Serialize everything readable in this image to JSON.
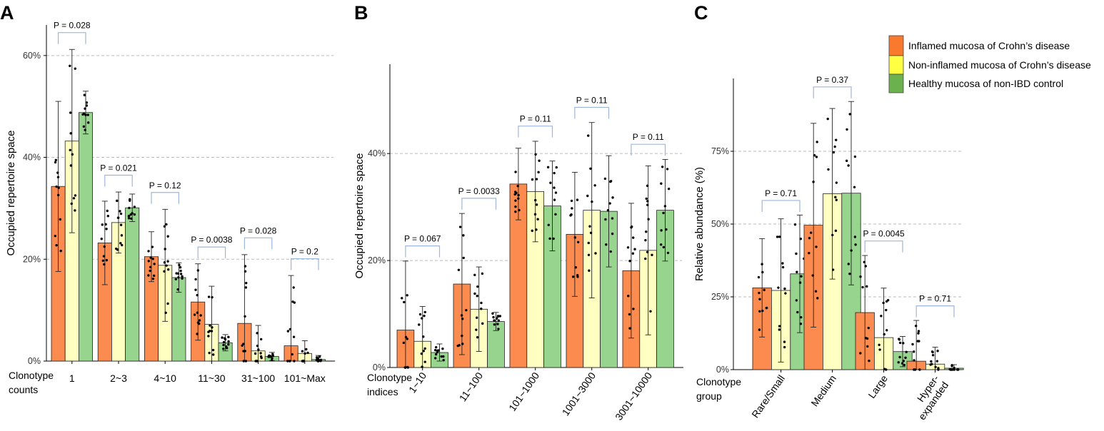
{
  "colors": {
    "series": [
      "#FB8B4E",
      "#FFFFC2",
      "#97D58E"
    ],
    "legend_swatches": [
      "#F9792F",
      "#FFFF44",
      "#6BB24F"
    ],
    "bracket": "#9DB6DC",
    "grid": "#BBBBBB",
    "point": "#000000"
  },
  "legend": {
    "items": [
      "Inflamed mucosa of Crohn’s disease",
      "Non-inflamed mucosa of Crohn’s disease",
      "Healthy mucosa of non-IBD control"
    ]
  },
  "chart_data": [
    {
      "panel": "A",
      "type": "bar",
      "ylabel": "Occupied repertoire space",
      "xlabel_lines": [
        "Clonotype",
        "counts"
      ],
      "categories": [
        "1",
        "2~3",
        "4~10",
        "11~30",
        "31~100",
        "101~Max"
      ],
      "yticks": [
        "0%",
        "20%",
        "40%",
        "60%"
      ],
      "ytick_values": [
        0,
        20,
        40,
        60
      ],
      "ylim": [
        0,
        66
      ],
      "grid": true,
      "series": [
        {
          "name": "Inflamed mucosa of Crohn’s disease",
          "values": [
            34.3,
            23.2,
            20.5,
            11.6,
            7.4,
            3.0
          ],
          "sd": [
            16.7,
            8.2,
            4.9,
            7.5,
            13.5,
            13.8
          ]
        },
        {
          "name": "Non-inflamed mucosa of Crohn’s disease",
          "values": [
            43.2,
            27.2,
            18.8,
            7.2,
            2.0,
            1.5
          ],
          "sd": [
            18.0,
            6.0,
            11.0,
            7.5,
            5.0,
            2.5
          ]
        },
        {
          "name": "Healthy mucosa of non-IBD control",
          "values": [
            48.8,
            30.1,
            16.4,
            3.6,
            0.9,
            0.3
          ],
          "sd": [
            4.2,
            2.7,
            2.9,
            1.6,
            0.8,
            0.8
          ]
        }
      ],
      "pvalues": [
        {
          "category": "1",
          "label": "P = 0.028"
        },
        {
          "category": "2~3",
          "label": "P = 0.021"
        },
        {
          "category": "4~10",
          "label": "P = 0.12"
        },
        {
          "category": "11~30",
          "label": "P = 0.0038"
        },
        {
          "category": "31~100",
          "label": "P = 0.028"
        },
        {
          "category": "101~Max",
          "label": "P = 0.2"
        }
      ]
    },
    {
      "panel": "B",
      "type": "bar",
      "ylabel": "Occupied repertoire space",
      "xlabel_lines": [
        "Clonotype",
        "indices"
      ],
      "categories": [
        "1~10",
        "11~100",
        "101~1000",
        "1001~3000",
        "3001~10000"
      ],
      "yticks": [
        "0%",
        "20%",
        "40%"
      ],
      "ytick_values": [
        0,
        20,
        40
      ],
      "ylim": [
        0,
        56.7
      ],
      "grid": true,
      "series": [
        {
          "name": "Inflamed mucosa of Crohn’s disease",
          "values": [
            7.0,
            15.6,
            34.3,
            24.9,
            18.1
          ],
          "sd": [
            12.9,
            13.2,
            6.7,
            11.6,
            12.6
          ]
        },
        {
          "name": "Non-inflamed mucosa of Crohn’s disease",
          "values": [
            4.9,
            10.9,
            32.9,
            29.4,
            21.9
          ],
          "sd": [
            6.5,
            7.9,
            9.4,
            16.4,
            15.8
          ]
        },
        {
          "name": "Healthy mucosa of non-IBD control",
          "values": [
            2.8,
            8.6,
            30.2,
            29.2,
            29.4
          ],
          "sd": [
            1.6,
            1.7,
            8.4,
            10.4,
            9.5
          ]
        }
      ],
      "pvalues": [
        {
          "category": "1~10",
          "label": "P = 0.067"
        },
        {
          "category": "11~100",
          "label": "P = 0.0033"
        },
        {
          "category": "101~1000",
          "label": "P = 0.11"
        },
        {
          "category": "1001~3000",
          "label": "P = 0.11"
        },
        {
          "category": "3001~10000",
          "label": "P = 0.11"
        }
      ]
    },
    {
      "panel": "C",
      "type": "bar",
      "ylabel": "Relative abundance (%)",
      "xlabel_lines": [
        "Clonotype",
        "group"
      ],
      "categories": [
        "Rare/Small",
        "Medium",
        "Large",
        "Hyper-\nexpanded"
      ],
      "yticks": [
        "0%",
        "25%",
        "50%",
        "75%"
      ],
      "ytick_values": [
        0,
        25,
        50,
        75
      ],
      "ylim": [
        0,
        100
      ],
      "grid": true,
      "series": [
        {
          "name": "Inflamed mucosa of Crohn’s disease",
          "values": [
            28.1,
            49.6,
            19.6,
            2.9
          ],
          "sd": [
            16.9,
            35.0,
            19.6,
            14.0
          ]
        },
        {
          "name": "Non-inflamed mucosa of Crohn’s disease",
          "values": [
            27.2,
            60.4,
            11.0,
            1.9
          ],
          "sd": [
            24.6,
            29.3,
            17.0,
            5.8
          ]
        },
        {
          "name": "Healthy mucosa of non-IBD control",
          "values": [
            32.9,
            60.6,
            6.2,
            0.5
          ],
          "sd": [
            20.2,
            31.5,
            5.2,
            1.2
          ]
        }
      ],
      "pvalues": [
        {
          "category": "Rare/Small",
          "label": "P = 0.71"
        },
        {
          "category": "Medium",
          "label": "P = 0.37"
        },
        {
          "category": "Large",
          "label": "P = 0.0045"
        },
        {
          "category": "Hyper-\nexpanded",
          "label": "P = 0.71"
        }
      ]
    }
  ]
}
